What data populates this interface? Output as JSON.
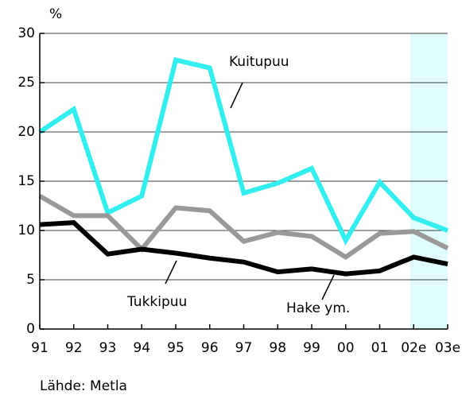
{
  "chart_data": {
    "type": "line",
    "y_unit": "%",
    "source": "Lähde: Metla",
    "categories": [
      "91",
      "92",
      "93",
      "94",
      "95",
      "96",
      "97",
      "98",
      "99",
      "00",
      "01",
      "02e",
      "03e"
    ],
    "series": [
      {
        "name": "Kuitupuu",
        "color": "#33eeee",
        "values": [
          20.0,
          22.3,
          11.8,
          13.5,
          27.3,
          26.5,
          13.8,
          14.8,
          16.3,
          9.0,
          14.9,
          11.3,
          10.0
        ]
      },
      {
        "name": "Hake ym.",
        "color": "#999999",
        "values": [
          13.5,
          11.5,
          11.5,
          8.1,
          12.3,
          12.0,
          8.9,
          9.8,
          9.4,
          7.3,
          9.7,
          9.9,
          8.2
        ]
      },
      {
        "name": "Tukkipuu",
        "color": "#000000",
        "values": [
          10.6,
          10.8,
          7.6,
          8.1,
          7.7,
          7.2,
          6.8,
          5.8,
          6.1,
          5.6,
          5.9,
          7.3,
          6.6
        ]
      }
    ],
    "ylim": [
      0,
      30
    ],
    "yticks": [
      0,
      5,
      10,
      15,
      20,
      25,
      30
    ],
    "grid": true
  }
}
